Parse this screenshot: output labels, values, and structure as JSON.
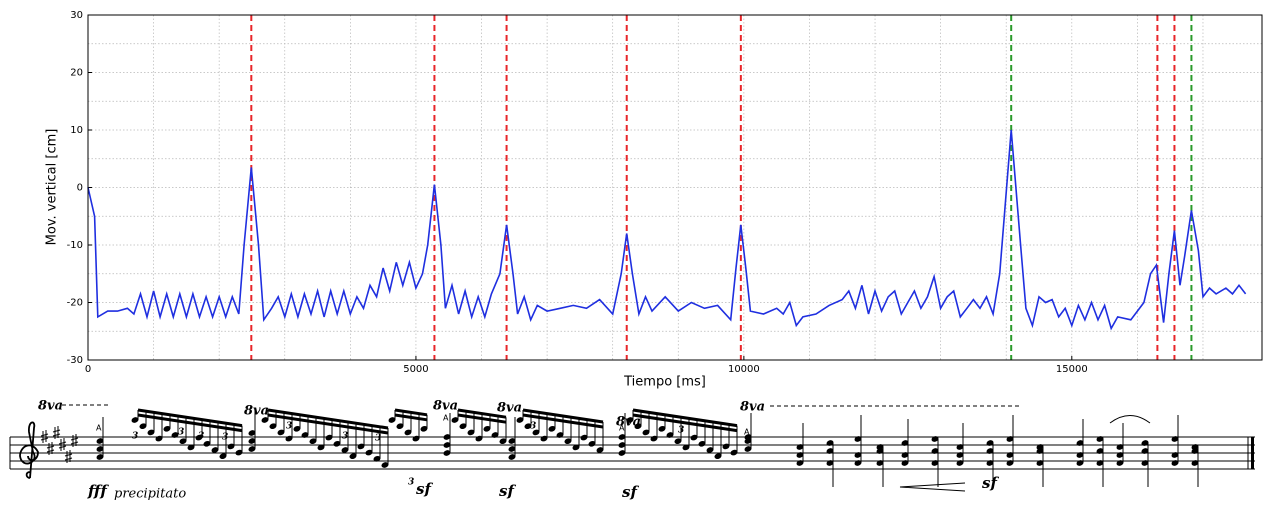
{
  "chart_data": {
    "type": "line",
    "ylabel": "Mov. vertical [cm]",
    "xlabel": "Tiempo [ms]",
    "color": "#1f2fe0",
    "xlim": [
      0,
      17900
    ],
    "ylim": [
      -30,
      30
    ],
    "xticks": [
      0,
      5000,
      10000,
      15000
    ],
    "yticks": [
      -30,
      -20,
      -10,
      0,
      10,
      20,
      30
    ],
    "xticks_minor": [
      1000,
      2000,
      3000,
      4000,
      6000,
      7000,
      8000,
      9000,
      11000,
      12000,
      13000,
      14000,
      16000,
      17000
    ],
    "yticks_minor": [
      -25,
      -15,
      -5,
      5,
      15,
      25
    ],
    "grid": true,
    "x": [
      0,
      100,
      150,
      300,
      450,
      600,
      700,
      800,
      900,
      1000,
      1100,
      1200,
      1300,
      1400,
      1500,
      1600,
      1700,
      1800,
      1900,
      2000,
      2100,
      2200,
      2300,
      2380,
      2490,
      2600,
      2680,
      2800,
      2900,
      3000,
      3100,
      3200,
      3300,
      3400,
      3500,
      3600,
      3700,
      3800,
      3900,
      4000,
      4100,
      4200,
      4300,
      4400,
      4500,
      4600,
      4700,
      4800,
      4900,
      5000,
      5100,
      5180,
      5282,
      5380,
      5450,
      5550,
      5650,
      5750,
      5850,
      5950,
      6050,
      6150,
      6280,
      6382,
      6480,
      6550,
      6650,
      6750,
      6850,
      7000,
      7200,
      7400,
      7600,
      7800,
      8000,
      8130,
      8214,
      8300,
      8400,
      8500,
      8600,
      8800,
      9000,
      9200,
      9400,
      9600,
      9800,
      9880,
      9954,
      10030,
      10100,
      10300,
      10500,
      10600,
      10700,
      10800,
      10900,
      11100,
      11300,
      11500,
      11600,
      11700,
      11800,
      11900,
      12000,
      12100,
      12200,
      12300,
      12400,
      12500,
      12600,
      12700,
      12800,
      12900,
      13000,
      13100,
      13200,
      13300,
      13400,
      13500,
      13600,
      13700,
      13800,
      13900,
      14076,
      14220,
      14300,
      14400,
      14500,
      14600,
      14700,
      14800,
      14900,
      15000,
      15100,
      15200,
      15300,
      15400,
      15500,
      15600,
      15700,
      15900,
      16100,
      16200,
      16290,
      16400,
      16480,
      16565,
      16650,
      16720,
      16824,
      16930,
      17000,
      17100,
      17200,
      17350,
      17450,
      17550,
      17650
    ],
    "values": [
      0,
      -5,
      -22.5,
      -21.5,
      -21.5,
      -21,
      -22,
      -18.5,
      -22.5,
      -18,
      -22.5,
      -18.5,
      -22.5,
      -18.5,
      -22.5,
      -18.5,
      -22.5,
      -19,
      -22.5,
      -19,
      -22.5,
      -19,
      -22,
      -10,
      3.5,
      -10,
      -23,
      -21,
      -19,
      -22.5,
      -18.5,
      -22.5,
      -18.5,
      -22,
      -18,
      -22.5,
      -18,
      -22,
      -18,
      -22,
      -19,
      -21,
      -17,
      -19,
      -14,
      -18,
      -13,
      -17,
      -13,
      -17.5,
      -15,
      -10,
      0.5,
      -10,
      -21,
      -17,
      -22,
      -18,
      -22.5,
      -19,
      -22.5,
      -18.5,
      -15,
      -6.5,
      -15,
      -22,
      -19,
      -23,
      -20.5,
      -21.5,
      -21,
      -20.5,
      -21,
      -19.5,
      -22,
      -15,
      -8,
      -15,
      -22,
      -19,
      -21.5,
      -19,
      -21.5,
      -20,
      -21,
      -20.5,
      -23,
      -14,
      -6.5,
      -14,
      -21.5,
      -22,
      -21,
      -22,
      -20,
      -24,
      -22.5,
      -22,
      -20.5,
      -19.5,
      -18,
      -21,
      -17,
      -22,
      -18,
      -21.5,
      -19,
      -18,
      -22,
      -20,
      -18,
      -21,
      -19,
      -15.5,
      -21,
      -19,
      -18,
      -22.5,
      -21,
      -19.5,
      -21,
      -19,
      -22,
      -15,
      10,
      -10,
      -21,
      -24,
      -19,
      -20,
      -19.5,
      -22.5,
      -21,
      -24,
      -20.5,
      -23,
      -20,
      -23,
      -20.5,
      -24.5,
      -22.5,
      -23,
      -20,
      -15,
      -13.5,
      -23.5,
      -15,
      -7.5,
      -17,
      -12,
      -4,
      -11,
      -19,
      -17.5,
      -18.5,
      -17.5,
      -18.5,
      -17,
      -18.5
    ],
    "vlines": [
      {
        "x": 2490,
        "color": "#e8262a"
      },
      {
        "x": 5282,
        "color": "#e8262a"
      },
      {
        "x": 6382,
        "color": "#e8262a"
      },
      {
        "x": 8214,
        "color": "#e8262a"
      },
      {
        "x": 9954,
        "color": "#e8262a"
      },
      {
        "x": 14076,
        "color": "#2a9a2a"
      },
      {
        "x": 16305,
        "color": "#e8262a"
      },
      {
        "x": 16565,
        "color": "#e8262a"
      },
      {
        "x": 16824,
        "color": "#2a9a2a"
      }
    ]
  },
  "score": {
    "octave_marks": [
      "8va",
      "8va",
      "8va",
      "8va",
      "8va",
      "8va"
    ],
    "accents": [
      "A",
      "A",
      "A",
      "A"
    ],
    "dynamics": [
      "fff",
      "sf",
      "sf",
      "sf",
      "sf"
    ],
    "expression": "precipitato",
    "tuplets": [
      "3",
      "3",
      "3",
      "3",
      "3",
      "3",
      "3",
      "3",
      "3",
      "3"
    ]
  }
}
